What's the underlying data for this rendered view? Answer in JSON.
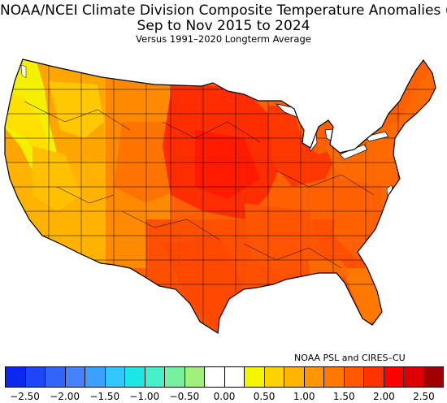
{
  "title": {
    "line1": "NOAA/NCEI Climate Division Composite Temperature Anomalies (F)",
    "line2": "Sep to Nov 2015 to 2024",
    "line3": "Versus 1991–2020 Longterm Average"
  },
  "credit": "NOAA PSL and CIRES–CU",
  "map": {
    "region": "Contiguous United States",
    "layer": "climate-division temperature anomaly",
    "dominant_colors": {
      "northwest": "#f0f000",
      "west": "#ffb400",
      "central": "#ff2d00",
      "east": "#ff6a00",
      "south": "#ff5500"
    }
  },
  "colorbar": {
    "colors": [
      "#0a28f0",
      "#1e46f5",
      "#3264fa",
      "#4682ff",
      "#3ca0ff",
      "#32c8ff",
      "#1ee6e6",
      "#46f0c8",
      "#78f0a0",
      "#a0f07e",
      "#ffffff",
      "#ffffff",
      "#f5f500",
      "#ffd200",
      "#ffb400",
      "#ff9600",
      "#ff7800",
      "#ff5a00",
      "#ff3200",
      "#ff0000",
      "#dc0000",
      "#a00000"
    ],
    "tick_labels": [
      "−2.50",
      "−2.00",
      "−1.50",
      "−1.00",
      "−0.50",
      "0.00",
      "0.50",
      "1.00",
      "1.50",
      "2.00",
      "2.50"
    ]
  }
}
